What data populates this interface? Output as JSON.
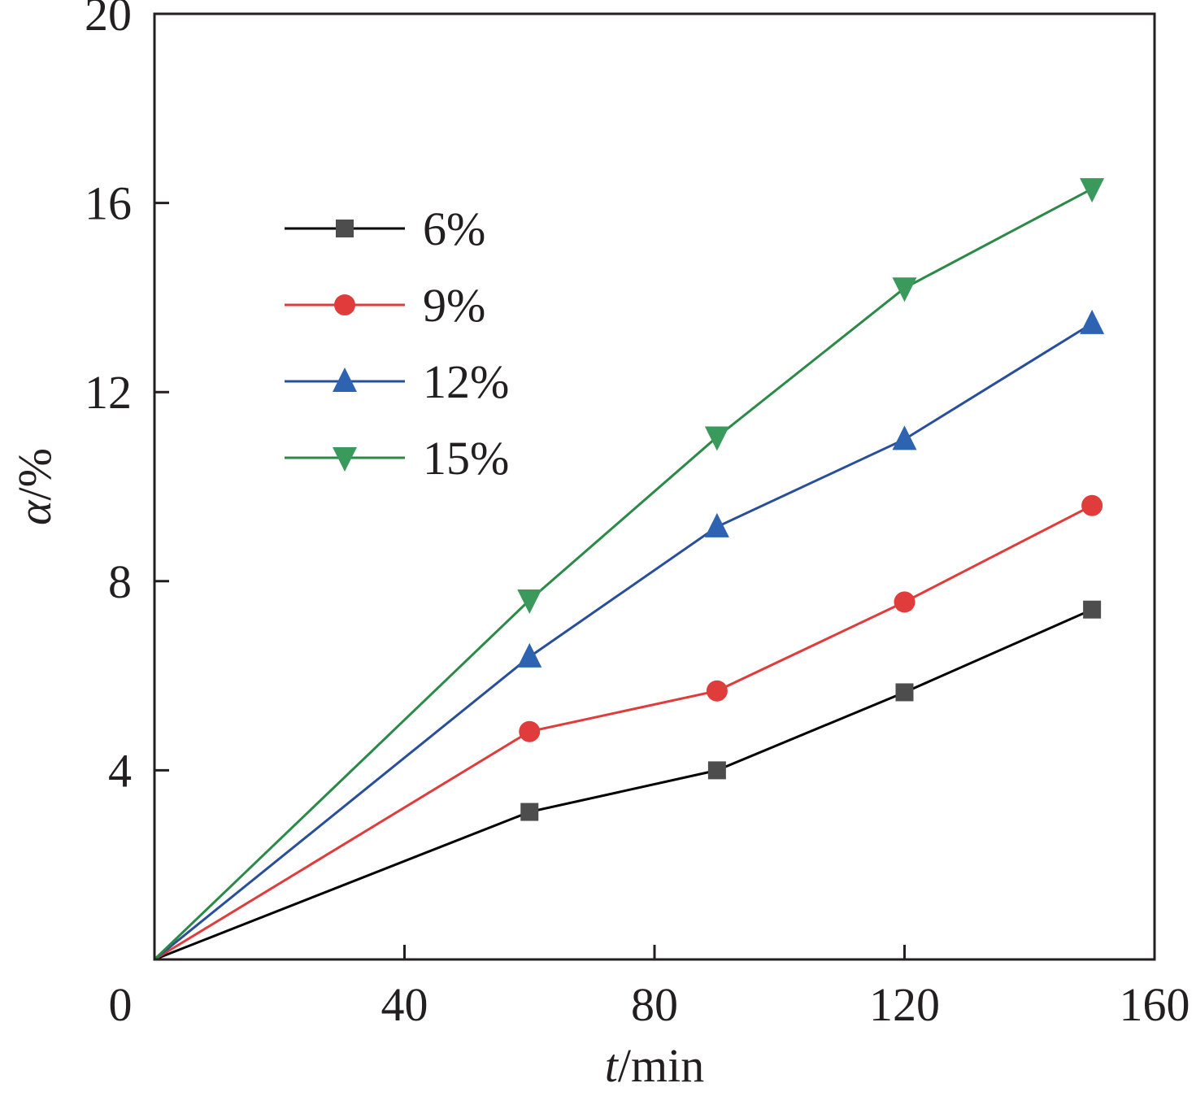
{
  "chart_data": {
    "type": "line",
    "xlabel": {
      "var": "t",
      "unit": "/min"
    },
    "ylabel": {
      "var": "α",
      "unit": "/%"
    },
    "xlim": [
      0,
      160
    ],
    "ylim": [
      0,
      20
    ],
    "x_ticks": [
      40,
      80,
      120,
      160
    ],
    "y_ticks": [
      4,
      8,
      12,
      16,
      20
    ],
    "origin_label": "0",
    "grid": false,
    "legend_position": "upper-left",
    "series": [
      {
        "name": "6%",
        "color": "#4d4d4d",
        "line_color": "#000000",
        "marker": "square",
        "x": [
          0,
          60,
          90,
          120,
          150
        ],
        "y": [
          0,
          3.12,
          4.0,
          5.65,
          7.4
        ]
      },
      {
        "name": "9%",
        "color": "#e03c3c",
        "line_color": "#e03c3c",
        "marker": "circle",
        "x": [
          0,
          60,
          90,
          120,
          150
        ],
        "y": [
          0,
          4.82,
          5.68,
          7.56,
          9.6
        ]
      },
      {
        "name": "12%",
        "color": "#2d63b0",
        "line_color": "#2a4f9a",
        "marker": "triangle-up",
        "x": [
          0,
          60,
          90,
          120,
          150
        ],
        "y": [
          0,
          6.4,
          9.15,
          11.0,
          13.45
        ]
      },
      {
        "name": "15%",
        "color": "#3a9a5c",
        "line_color": "#2b8a47",
        "marker": "triangle-down",
        "x": [
          0,
          60,
          90,
          120,
          150
        ],
        "y": [
          0,
          7.6,
          11.05,
          14.2,
          16.3
        ]
      }
    ]
  }
}
